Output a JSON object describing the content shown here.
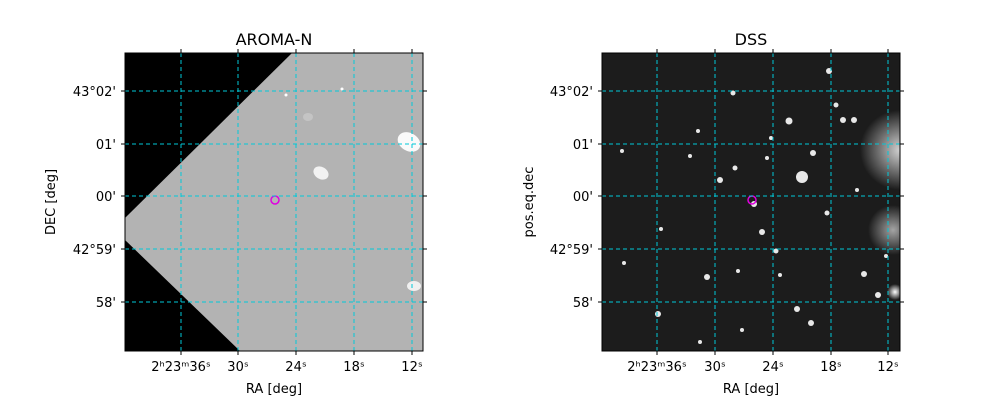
{
  "panels": [
    {
      "title": "AROMA-N",
      "xlabel": "RA [deg]",
      "ylabel": "DEC [deg]",
      "xticks": [
        "2ʰ23ᵐ36ˢ",
        "30ˢ",
        "24ˢ",
        "18ˢ",
        "12ˢ"
      ],
      "yticks": [
        "43°02'",
        "01'",
        "00'",
        "42°59'",
        "58'"
      ]
    },
    {
      "title": "DSS",
      "xlabel": "RA [deg]",
      "ylabel": "pos.eq.dec",
      "xticks": [
        "2ʰ23ᵐ36ˢ",
        "30ˢ",
        "24ˢ",
        "18ˢ",
        "12ˢ"
      ],
      "yticks": [
        "43°02'",
        "01'",
        "00'",
        "42°59'",
        "58'"
      ]
    }
  ]
}
